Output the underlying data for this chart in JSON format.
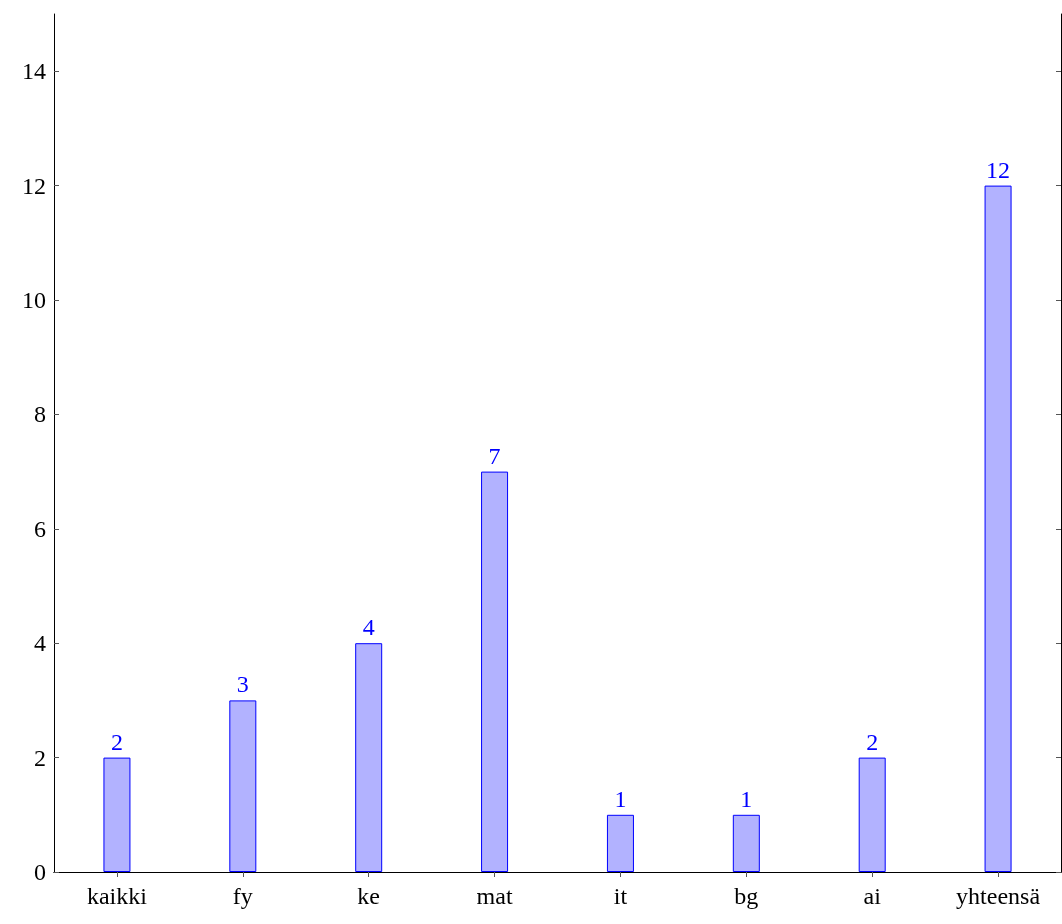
{
  "chart_data": {
    "type": "bar",
    "categories": [
      "kaikki",
      "fy",
      "ke",
      "mat",
      "it",
      "bg",
      "ai",
      "yhteensä"
    ],
    "values": [
      2,
      3,
      4,
      7,
      1,
      1,
      2,
      12
    ],
    "color": "#0000ff",
    "ylim": [
      0,
      15
    ],
    "yticks": [
      0,
      2,
      4,
      6,
      8,
      10,
      12,
      14
    ],
    "data_labels": true,
    "grid": false
  }
}
